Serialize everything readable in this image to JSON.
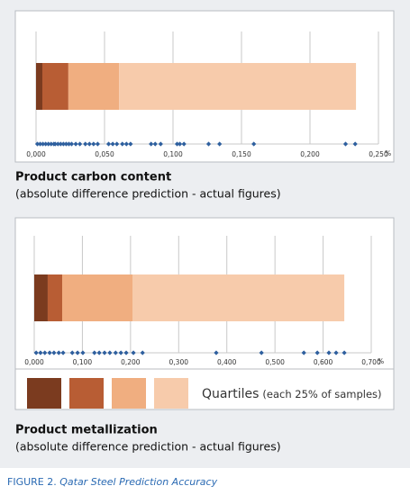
{
  "chart_data": [
    {
      "type": "bar",
      "orientation": "horizontal",
      "stacked": true,
      "title": "Product carbon content",
      "subtitle": "(absolute difference prediction - actual figures)",
      "values": [
        0.0046,
        0.019,
        0.037,
        0.173
      ],
      "colors": [
        "#7b3b1f",
        "#b85d34",
        "#f0ae80",
        "#f7cbab"
      ],
      "points": [
        0.001,
        0.003,
        0.005,
        0.007,
        0.009,
        0.011,
        0.013,
        0.014,
        0.016,
        0.018,
        0.02,
        0.022,
        0.024,
        0.026,
        0.029,
        0.032,
        0.036,
        0.039,
        0.042,
        0.045,
        0.053,
        0.056,
        0.059,
        0.063,
        0.066,
        0.069,
        0.084,
        0.087,
        0.091,
        0.103,
        0.105,
        0.108,
        0.126,
        0.134,
        0.159,
        0.226,
        0.233
      ],
      "point_color": "#2e5f9e",
      "xlim": [
        0,
        0.25
      ],
      "xticks": [
        {
          "value": 0,
          "label": "0,000"
        },
        {
          "value": 0.05,
          "label": "0,050"
        },
        {
          "value": 0.1,
          "label": "0,100"
        },
        {
          "value": 0.15,
          "label": "0,150"
        },
        {
          "value": 0.2,
          "label": "0,200"
        },
        {
          "value": 0.25,
          "label": "0,250"
        }
      ],
      "x_unit": "%",
      "grid": true
    },
    {
      "type": "bar",
      "orientation": "horizontal",
      "stacked": true,
      "title": "Product metallization",
      "subtitle": "(absolute difference prediction - actual figures)",
      "values": [
        0.028,
        0.03,
        0.146,
        0.44
      ],
      "colors": [
        "#7b3b1f",
        "#b85d34",
        "#f0ae80",
        "#f7cbab"
      ],
      "points": [
        0.004,
        0.013,
        0.022,
        0.032,
        0.041,
        0.051,
        0.06,
        0.079,
        0.09,
        0.101,
        0.125,
        0.135,
        0.146,
        0.157,
        0.169,
        0.18,
        0.191,
        0.206,
        0.225,
        0.378,
        0.472,
        0.56,
        0.588,
        0.612,
        0.627,
        0.644
      ],
      "point_color": "#2e5f9e",
      "xlim": [
        0,
        0.7
      ],
      "xticks": [
        {
          "value": 0,
          "label": "0,000"
        },
        {
          "value": 0.1,
          "label": "0,100"
        },
        {
          "value": 0.2,
          "label": "0,200"
        },
        {
          "value": 0.3,
          "label": "0,300"
        },
        {
          "value": 0.4,
          "label": "0,400"
        },
        {
          "value": 0.5,
          "label": "0,500"
        },
        {
          "value": 0.6,
          "label": "0,600"
        },
        {
          "value": 0.7,
          "label": "0,700"
        }
      ],
      "x_unit": "%",
      "grid": true,
      "legend": {
        "label": "Quartiles",
        "note": "(each 25% of samples)"
      }
    }
  ],
  "figure_caption": {
    "label": "FIGURE 2.",
    "title": "Qatar Steel Prediction Accuracy"
  }
}
